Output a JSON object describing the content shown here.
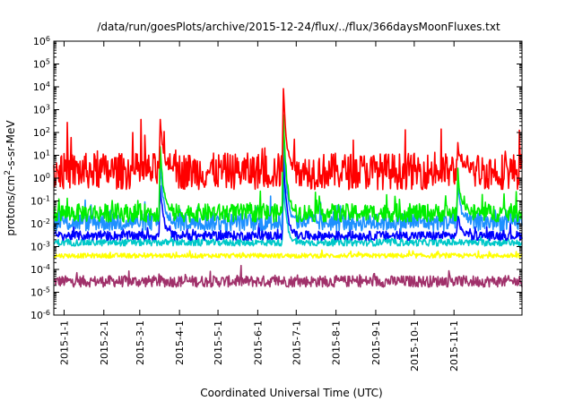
{
  "chart_data": {
    "type": "line",
    "title": "/data/run/goesPlots/archive/2015-12-24/flux/../flux/366daysMoonFluxes.txt",
    "xlabel": "Coordinated Universal Time (UTC)",
    "ylabel": {
      "base": "protons/cm",
      "sup": "2",
      "rest": "-s-sr-MeV"
    },
    "yscale": "log",
    "ylim": [
      1e-06,
      1000000.0
    ],
    "y_ticks": [
      {
        "exp": "-6"
      },
      {
        "exp": "-5"
      },
      {
        "exp": "-4"
      },
      {
        "exp": "-3"
      },
      {
        "exp": "-2"
      },
      {
        "exp": "-1"
      },
      {
        "exp": "0"
      },
      {
        "exp": "1"
      },
      {
        "exp": "2"
      },
      {
        "exp": "3"
      },
      {
        "exp": "4"
      },
      {
        "exp": "5"
      },
      {
        "exp": "6"
      }
    ],
    "x_range": [
      "2014-12-24",
      "2015-12-24"
    ],
    "x_ticks": [
      "2015-1-1",
      "2015-2-1",
      "2015-3-1",
      "2015-4-1",
      "2015-5-1",
      "2015-6-1",
      "2015-7-1",
      "2015-8-1",
      "2015-9-1",
      "2015-10-1",
      "2015-11-1"
    ],
    "x_tick_dates": [
      "2015-01-01",
      "2015-02-01",
      "2015-03-01",
      "2015-04-01",
      "2015-05-01",
      "2015-06-01",
      "2015-07-01",
      "2015-08-01",
      "2015-09-01",
      "2015-10-01",
      "2015-11-01"
    ],
    "grid": false,
    "legend": "none",
    "series": [
      {
        "color": "#ff0000",
        "baseline": 2.0,
        "spread": 0.8,
        "events": [
          {
            "date": "2015-03-17",
            "peak": 400
          },
          {
            "date": "2015-06-21",
            "peak": 9000
          },
          {
            "date": "2015-11-04",
            "peak": 30
          }
        ]
      },
      {
        "color": "#00ee00",
        "baseline": 0.03,
        "spread": 0.4,
        "events": [
          {
            "date": "2015-03-17",
            "peak": 30
          },
          {
            "date": "2015-06-21",
            "peak": 700
          },
          {
            "date": "2015-11-04",
            "peak": 2
          }
        ]
      },
      {
        "color": "#1e90ff",
        "baseline": 0.012,
        "spread": 0.4,
        "events": [
          {
            "date": "2015-03-17",
            "peak": 5
          },
          {
            "date": "2015-06-21",
            "peak": 200
          },
          {
            "date": "2015-11-04",
            "peak": 0.5
          }
        ]
      },
      {
        "color": "#0000ff",
        "baseline": 0.003,
        "spread": 0.2,
        "events": [
          {
            "date": "2015-03-17",
            "peak": 0.5
          },
          {
            "date": "2015-06-21",
            "peak": 10
          },
          {
            "date": "2015-11-04",
            "peak": 0.02
          }
        ]
      },
      {
        "color": "#00c8c8",
        "baseline": 0.0015,
        "spread": 0.15,
        "events": [
          {
            "date": "2015-06-21",
            "peak": 1
          }
        ]
      },
      {
        "color": "#ffff00",
        "baseline": 0.0004,
        "spread": 0.1,
        "events": []
      },
      {
        "color": "#a0306a",
        "baseline": 3e-05,
        "spread": 0.25,
        "events": []
      }
    ]
  }
}
